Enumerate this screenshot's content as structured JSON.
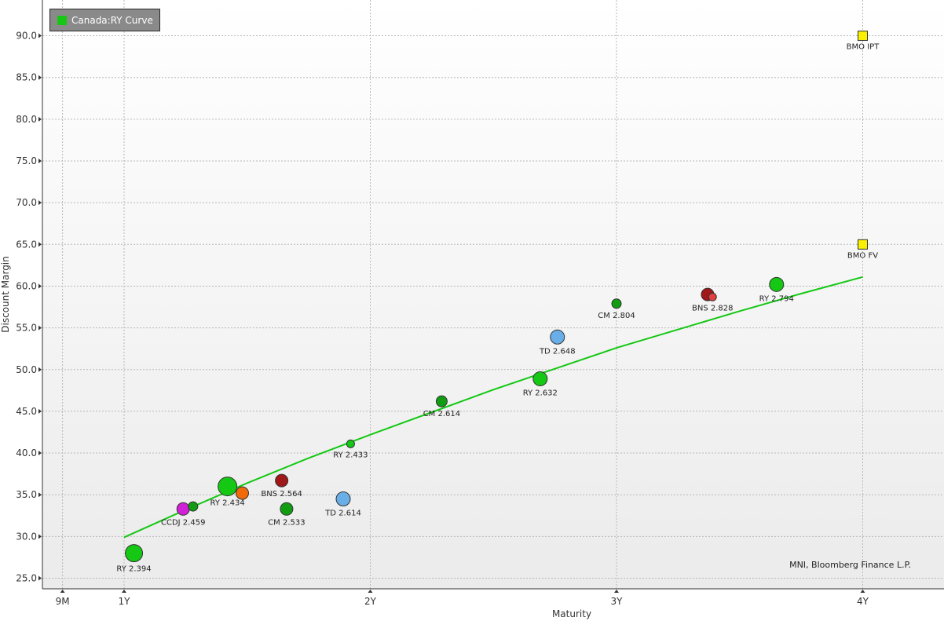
{
  "chart_data": {
    "type": "scatter",
    "xlabel": "Maturity",
    "ylabel": "Discount Margin",
    "xlim": [
      0.75,
      4.33
    ],
    "ylim": [
      24,
      94.3
    ],
    "x_ticks": [
      {
        "value": 0.75,
        "label": "9M"
      },
      {
        "value": 1,
        "label": "1Y"
      },
      {
        "value": 2,
        "label": "2Y"
      },
      {
        "value": 3,
        "label": "3Y"
      },
      {
        "value": 4,
        "label": "4Y"
      }
    ],
    "y_ticks": [
      25,
      30,
      35,
      40,
      45,
      50,
      55,
      60,
      65,
      70,
      75,
      80,
      85,
      90
    ],
    "y_tick_labels": [
      "25.0",
      "30.0",
      "35.0",
      "40.0",
      "45.0",
      "50.0",
      "55.0",
      "60.0",
      "65.0",
      "70.0",
      "75.0",
      "80.0",
      "85.0",
      "90.0"
    ],
    "grid": true,
    "legend": {
      "position": "top-left",
      "label": "Canada:RY Curve",
      "color": "#14c814"
    },
    "credit": "MNI, Bloomberg Finance L.P.",
    "curve": {
      "color": "#14c814",
      "points": [
        [
          1.0,
          29.9
        ],
        [
          1.25,
          33.2
        ],
        [
          1.5,
          36.4
        ],
        [
          1.75,
          39.4
        ],
        [
          2.0,
          42.2
        ],
        [
          2.25,
          44.9
        ],
        [
          2.5,
          47.6
        ],
        [
          2.75,
          50.1
        ],
        [
          3.0,
          52.6
        ],
        [
          3.25,
          54.8
        ],
        [
          3.5,
          57.0
        ],
        [
          3.75,
          59.1
        ],
        [
          4.0,
          61.1
        ]
      ]
    },
    "points": [
      {
        "label": "RY 2.394",
        "x": 1.04,
        "y": 28.0,
        "size": 11,
        "color": "#14c814"
      },
      {
        "label": "CCDJ 2.459",
        "x": 1.24,
        "y": 33.3,
        "size": 8,
        "color": "#d020d8"
      },
      {
        "label": "",
        "x": 1.28,
        "y": 33.6,
        "size": 6,
        "color": "#129c12"
      },
      {
        "label": "RY 2.434",
        "x": 1.42,
        "y": 36.0,
        "size": 12,
        "color": "#14c814"
      },
      {
        "label": "",
        "x": 1.48,
        "y": 35.2,
        "size": 8,
        "color": "#f06a0c"
      },
      {
        "label": "BNS 2.564",
        "x": 1.64,
        "y": 36.7,
        "size": 8,
        "color": "#a01818"
      },
      {
        "label": "CM 2.533",
        "x": 1.66,
        "y": 33.3,
        "size": 8,
        "color": "#129c12"
      },
      {
        "label": "TD 2.614",
        "x": 1.89,
        "y": 34.5,
        "size": 9,
        "color": "#6aaee8"
      },
      {
        "label": "RY 2.433",
        "x": 1.92,
        "y": 41.1,
        "size": 5,
        "color": "#14c814"
      },
      {
        "label": "CM 2.614",
        "x": 2.29,
        "y": 46.2,
        "size": 7,
        "color": "#129c12"
      },
      {
        "label": "RY 2.632",
        "x": 2.69,
        "y": 48.9,
        "size": 9,
        "color": "#14c814"
      },
      {
        "label": "TD 2.648",
        "x": 2.76,
        "y": 53.9,
        "size": 9,
        "color": "#6aaee8"
      },
      {
        "label": "CM 2.804",
        "x": 3.0,
        "y": 57.9,
        "size": 6,
        "color": "#129c12"
      },
      {
        "label": "",
        "x": 3.37,
        "y": 59.0,
        "size": 8,
        "color": "#a01818"
      },
      {
        "label": "BNS 2.828",
        "x": 3.39,
        "y": 58.7,
        "size": 5,
        "color": "#e04040"
      },
      {
        "label": "RY 2.794",
        "x": 3.65,
        "y": 60.2,
        "size": 9,
        "color": "#14c814"
      }
    ],
    "markers": [
      {
        "label": "BMO IPT",
        "x": 4.0,
        "y": 90.0,
        "color": "#f8f000"
      },
      {
        "label": "BMO FV",
        "x": 4.0,
        "y": 65.0,
        "color": "#f8f000"
      }
    ]
  }
}
